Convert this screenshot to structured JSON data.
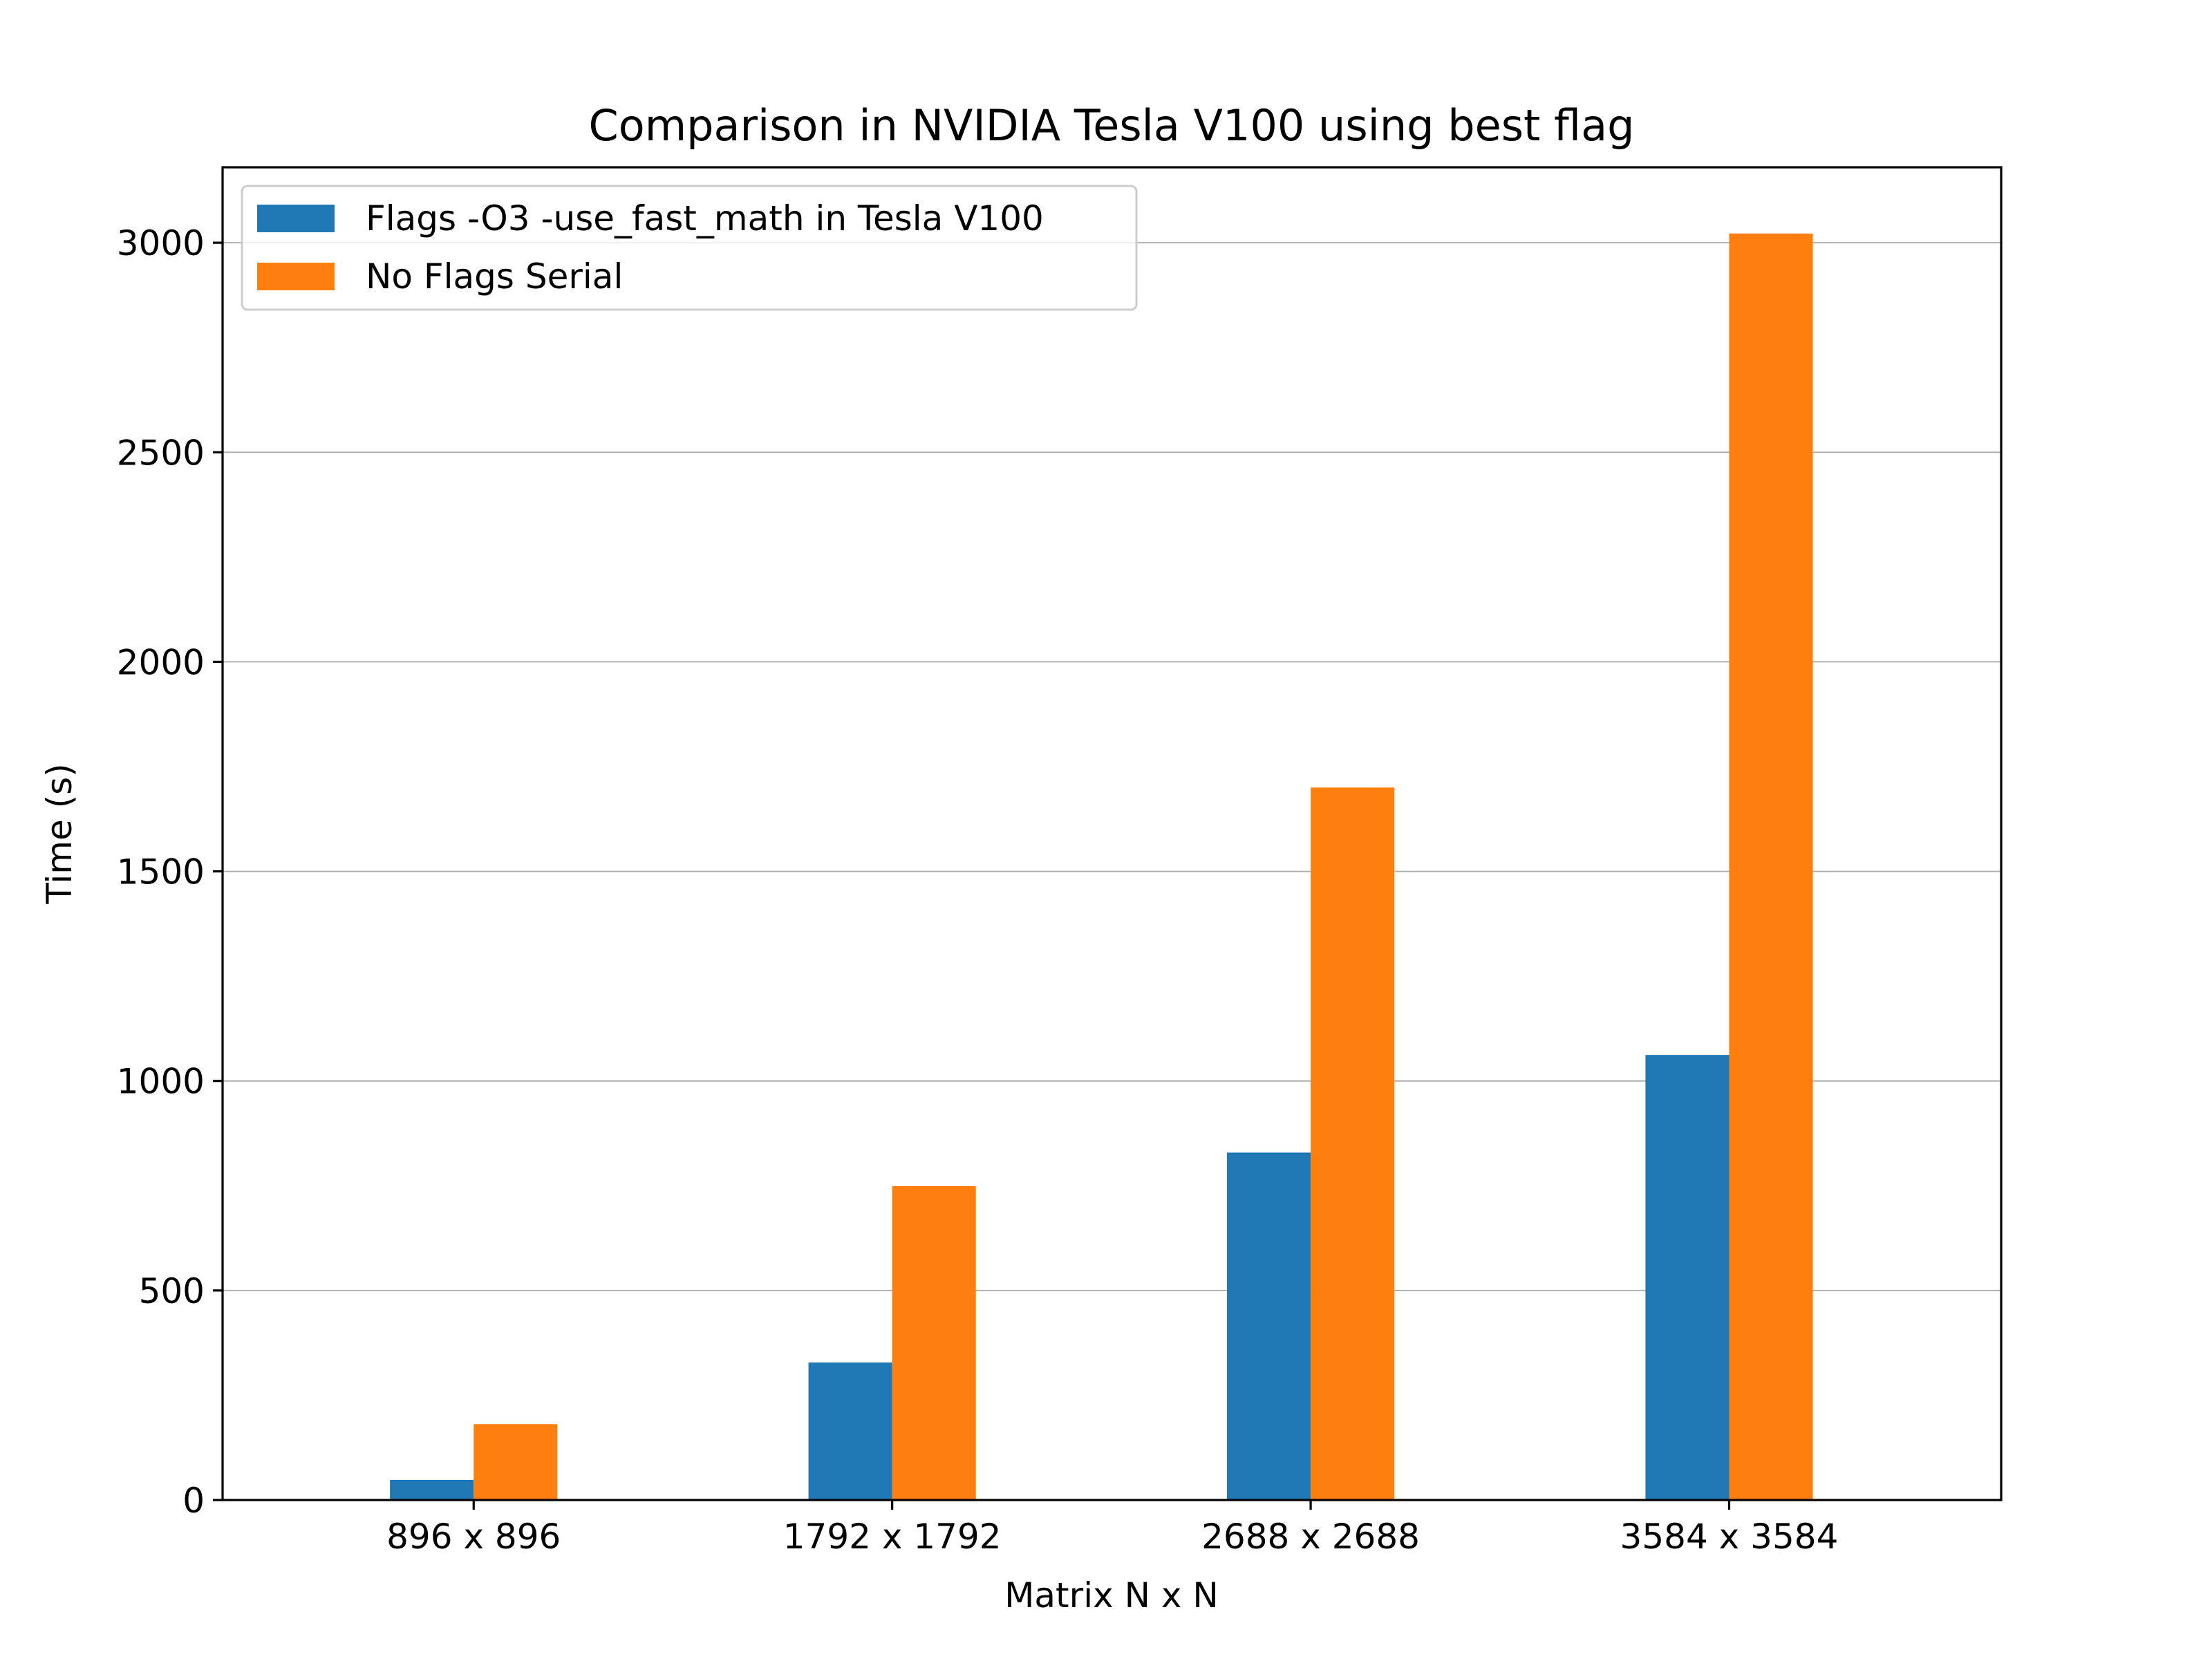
{
  "chart_data": {
    "type": "bar",
    "title": "Comparison in NVIDIA Tesla V100 using best flag",
    "xlabel": "Matrix N x N",
    "ylabel": "Time (s)",
    "categories": [
      "896 x 896",
      "1792 x 1792",
      "2688 x 2688",
      "3584 x 3584"
    ],
    "series": [
      {
        "name": "Flags -O3 -use_fast_math in Tesla V100",
        "color": "#1f77b4",
        "values": [
          48,
          328,
          829,
          1062
        ]
      },
      {
        "name": "No Flags Serial",
        "color": "#ff7f0e",
        "values": [
          181,
          749,
          1700,
          3022
        ]
      }
    ],
    "ylim": [
      0,
      3180
    ],
    "yticks": [
      0,
      500,
      1000,
      1500,
      2000,
      2500,
      3000
    ],
    "grid": "y",
    "legend_position": "upper left"
  }
}
